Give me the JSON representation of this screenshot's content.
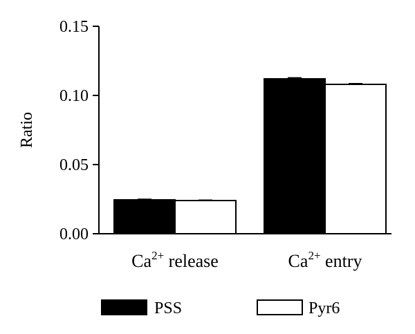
{
  "chart_data": {
    "type": "bar",
    "title": "",
    "xlabel": "",
    "ylabel": "Ratio",
    "ylim": [
      0,
      0.15
    ],
    "yticks": [
      "0.00",
      "0.05",
      "0.10",
      "0.15"
    ],
    "grid": false,
    "legend_position": "bottom",
    "categories": [
      {
        "base": "Ca",
        "sup": "2+",
        "rest": " release"
      },
      {
        "base": "Ca",
        "sup": "2+",
        "rest": " entry"
      }
    ],
    "series": [
      {
        "name": "PSS",
        "color": "#000000",
        "values": [
          0.0245,
          0.112
        ],
        "errors": [
          0.0005,
          0.0008
        ]
      },
      {
        "name": "Pyr6",
        "color": "#ffffff",
        "values": [
          0.024,
          0.108
        ],
        "errors": [
          0.0004,
          0.0006
        ]
      }
    ]
  }
}
